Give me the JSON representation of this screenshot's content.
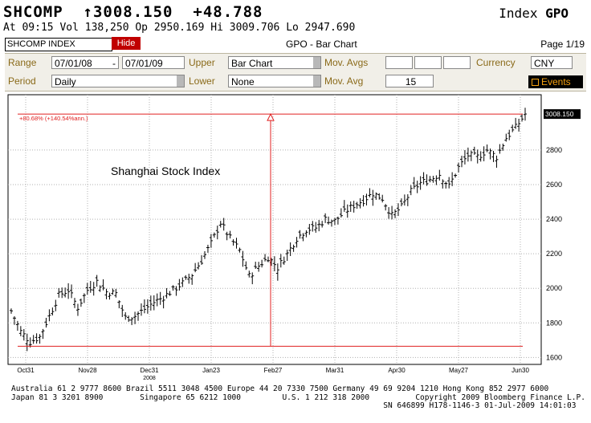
{
  "header": {
    "ticker": "SHCOMP",
    "arrow": "↑",
    "last": "3008.150",
    "change": "+48.788",
    "index_word": "Index",
    "function": "GPO",
    "line2": "At 09:15 Vol 138,250 Op 2950.169 Hi 3009.706 Lo 2947.690"
  },
  "toolbar": {
    "security": "SHCOMP INDEX",
    "hide_label": "Hide",
    "title": "GPO - Bar Chart",
    "page": "Page 1/19"
  },
  "panel": {
    "range_label": "Range",
    "range_from": "07/01/08",
    "range_sep": "-",
    "range_to": "07/01/09",
    "upper_label": "Upper",
    "upper_value": "Bar Chart",
    "movavgs_label": "Mov. Avgs",
    "currency_label": "Currency",
    "currency_value": "CNY",
    "period_label": "Period",
    "period_value": "Daily",
    "lower_label": "Lower",
    "lower_value": "None",
    "movavg_label": "Mov. Avg",
    "movavg_value": "15",
    "events_label": "Events"
  },
  "chart_data": {
    "type": "ohlc-bar",
    "title": "",
    "annotation": "Shanghai Stock Index",
    "gain_label": "+80.68% (+140.54%ann.)",
    "last_label": "3008.150",
    "ylim": [
      1560,
      3120
    ],
    "y_ticks": [
      1600,
      1800,
      2000,
      2200,
      2400,
      2600,
      2800
    ],
    "x_ticks": [
      "Oct31",
      "Nov28",
      "Dec31",
      "Jan23",
      "Feb27",
      "Mar31",
      "Apr30",
      "May27",
      "Jun30"
    ],
    "year_label": "2008",
    "baseline": 1664.93,
    "top_line": 3008.15,
    "trend_path": [
      {
        "i": 0,
        "v": 1870
      },
      {
        "i": 3,
        "v": 1750
      },
      {
        "i": 6,
        "v": 1690
      },
      {
        "i": 9,
        "v": 1720
      },
      {
        "i": 12,
        "v": 1840
      },
      {
        "i": 15,
        "v": 1960
      },
      {
        "i": 18,
        "v": 1990
      },
      {
        "i": 21,
        "v": 1890
      },
      {
        "i": 24,
        "v": 1990
      },
      {
        "i": 27,
        "v": 2040
      },
      {
        "i": 30,
        "v": 1980
      },
      {
        "i": 33,
        "v": 1970
      },
      {
        "i": 36,
        "v": 1830
      },
      {
        "i": 39,
        "v": 1840
      },
      {
        "i": 42,
        "v": 1880
      },
      {
        "i": 45,
        "v": 1920
      },
      {
        "i": 48,
        "v": 1950
      },
      {
        "i": 51,
        "v": 1990
      },
      {
        "i": 54,
        "v": 2030
      },
      {
        "i": 57,
        "v": 2080
      },
      {
        "i": 60,
        "v": 2160
      },
      {
        "i": 63,
        "v": 2260
      },
      {
        "i": 66,
        "v": 2380
      },
      {
        "i": 69,
        "v": 2290
      },
      {
        "i": 72,
        "v": 2220
      },
      {
        "i": 75,
        "v": 2070
      },
      {
        "i": 78,
        "v": 2130
      },
      {
        "i": 81,
        "v": 2180
      },
      {
        "i": 84,
        "v": 2120
      },
      {
        "i": 87,
        "v": 2200
      },
      {
        "i": 90,
        "v": 2290
      },
      {
        "i": 93,
        "v": 2340
      },
      {
        "i": 96,
        "v": 2350
      },
      {
        "i": 99,
        "v": 2400
      },
      {
        "i": 102,
        "v": 2390
      },
      {
        "i": 105,
        "v": 2440
      },
      {
        "i": 108,
        "v": 2480
      },
      {
        "i": 111,
        "v": 2510
      },
      {
        "i": 114,
        "v": 2550
      },
      {
        "i": 117,
        "v": 2520
      },
      {
        "i": 120,
        "v": 2420
      },
      {
        "i": 123,
        "v": 2470
      },
      {
        "i": 126,
        "v": 2560
      },
      {
        "i": 129,
        "v": 2610
      },
      {
        "i": 132,
        "v": 2630
      },
      {
        "i": 135,
        "v": 2660
      },
      {
        "i": 138,
        "v": 2590
      },
      {
        "i": 141,
        "v": 2700
      },
      {
        "i": 144,
        "v": 2770
      },
      {
        "i": 147,
        "v": 2760
      },
      {
        "i": 150,
        "v": 2800
      },
      {
        "i": 153,
        "v": 2760
      },
      {
        "i": 156,
        "v": 2870
      },
      {
        "i": 159,
        "v": 2930
      },
      {
        "i": 162,
        "v": 3008
      }
    ]
  },
  "footer": {
    "line1": "Australia 61 2 9777 8600 Brazil 5511 3048 4500 Europe 44 20 7330 7500 Germany 49 69 9204 1210 Hong Kong 852 2977 6000",
    "line2": "Japan 81 3 3201 8900        Singapore 65 6212 1000         U.S. 1 212 318 2000          Copyright 2009 Bloomberg Finance L.P.",
    "line3": "                                                                                 SN 646899 H178-1146-3 01-Jul-2009 14:01:03"
  }
}
